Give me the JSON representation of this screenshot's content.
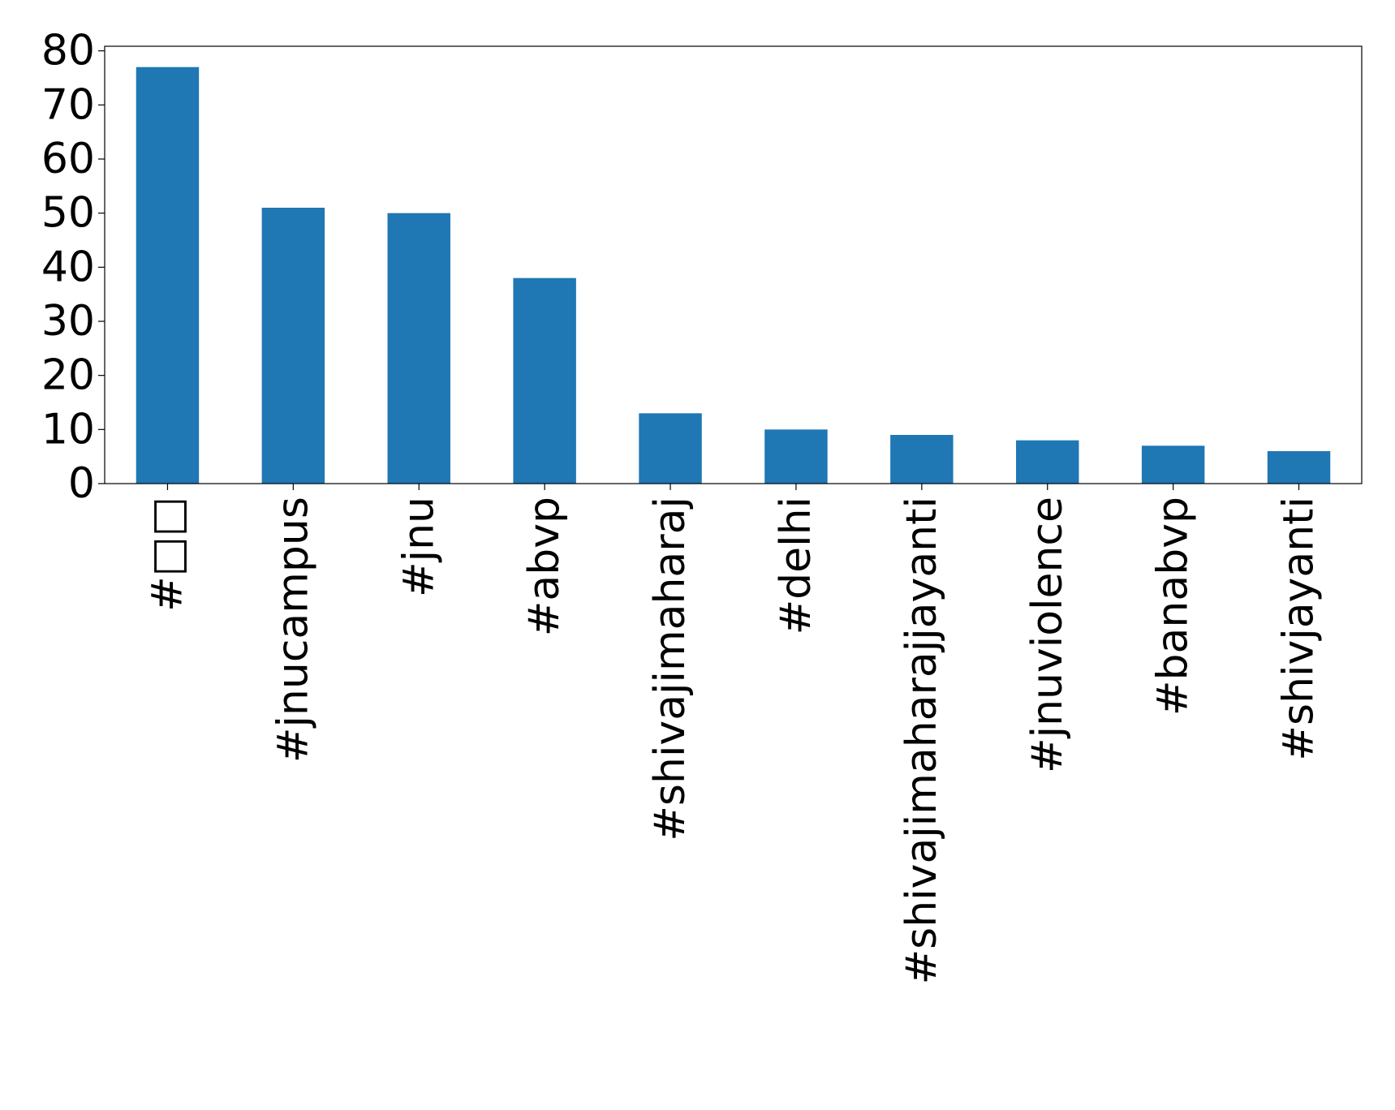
{
  "chart_data": {
    "type": "bar",
    "categories": [
      "#□□",
      "#jnucampus",
      "#jnu",
      "#abvp",
      "#shivajimaharaj",
      "#delhi",
      "#shivajimaharajjayanti",
      "#jnuviolence",
      "#banabvp",
      "#shivjayanti"
    ],
    "values": [
      77,
      51,
      50,
      38,
      13,
      10,
      9,
      8,
      7,
      6
    ],
    "color": "#1f77b4",
    "ylim": [
      0,
      80.85
    ],
    "yticks": [
      0,
      10,
      20,
      30,
      40,
      50,
      60,
      70,
      80
    ],
    "grid": false
  }
}
